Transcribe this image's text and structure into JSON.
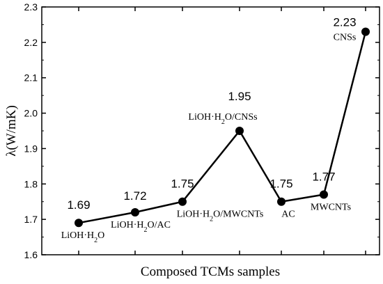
{
  "chart_data": {
    "type": "line",
    "title": "",
    "xlabel": "Composed TCMs samples",
    "ylabel": "λ(W/mK)",
    "ylim": [
      1.6,
      2.3
    ],
    "yticks": [
      1.6,
      1.7,
      1.8,
      1.9,
      2.0,
      2.1,
      2.2,
      2.3
    ],
    "ytick_labels": [
      "1.6",
      "1.7",
      "1.8",
      "1.9",
      "2.0",
      "2.1",
      "2.2",
      "2.3"
    ],
    "grid": false,
    "legend": "none",
    "categories": [
      "LiOH·H2O",
      "LiOH·H2O/AC",
      "LiOH·H2O/MWCNTs",
      "LiOH·H2O/CNSs",
      "AC",
      "MWCNTs",
      "CNSs"
    ],
    "series": [
      {
        "values": [
          1.69,
          1.72,
          1.75,
          1.95,
          1.75,
          1.77,
          2.23
        ]
      }
    ],
    "data_labels": [
      "1.69",
      "1.72",
      "1.75",
      "1.95",
      "1.75",
      "1.77",
      "2.23"
    ],
    "colors": {
      "line": "#000000",
      "marker": "#000000",
      "axis": "#000000"
    }
  }
}
